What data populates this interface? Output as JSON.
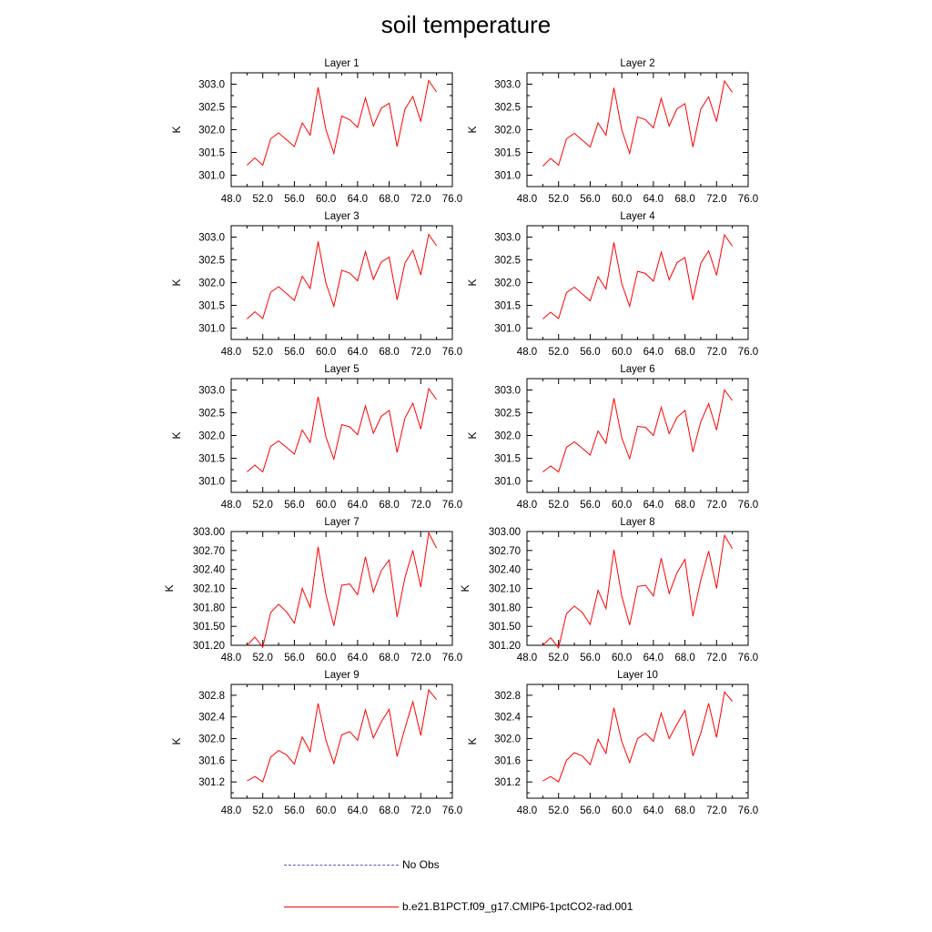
{
  "figure": {
    "title": "soil temperature"
  },
  "legend": {
    "items": [
      {
        "label": "No Obs",
        "style": "dashed",
        "color": "#5a5ab0"
      },
      {
        "label": "b.e21.B1PCT.f09_g17.CMIP6-1pctCO2-rad.001",
        "style": "solid",
        "color": "#ff0000"
      }
    ]
  },
  "chart_data": [
    {
      "type": "line",
      "title": "Layer 1",
      "xlabel": "",
      "ylabel": "K",
      "xlim": [
        48,
        76
      ],
      "xticks": [
        "48.0",
        "52.0",
        "56.0",
        "60.0",
        "64.0",
        "68.0",
        "72.0",
        "76.0"
      ],
      "ylim": [
        300.75,
        303.25
      ],
      "yticks": [
        "301.0",
        "301.5",
        "302.0",
        "302.5",
        "303.0"
      ],
      "x": [
        50,
        51,
        52,
        53,
        54,
        55,
        56,
        57,
        58,
        59,
        60,
        61,
        62,
        63,
        64,
        65,
        66,
        67,
        68,
        69,
        70,
        71,
        72,
        73,
        74
      ],
      "series": [
        {
          "color": "#ff0000",
          "values": [
            301.22,
            301.38,
            301.22,
            301.8,
            301.93,
            301.78,
            301.63,
            302.15,
            301.88,
            302.93,
            302.0,
            301.48,
            302.3,
            302.22,
            302.05,
            302.7,
            302.08,
            302.47,
            302.58,
            301.63,
            302.45,
            302.73,
            302.18,
            303.08,
            302.83
          ]
        }
      ]
    },
    {
      "type": "line",
      "title": "Layer 2",
      "xlabel": "",
      "ylabel": "K",
      "xlim": [
        48,
        76
      ],
      "xticks": [
        "48.0",
        "52.0",
        "56.0",
        "60.0",
        "64.0",
        "68.0",
        "72.0",
        "76.0"
      ],
      "ylim": [
        300.75,
        303.25
      ],
      "yticks": [
        "301.0",
        "301.5",
        "302.0",
        "302.5",
        "303.0"
      ],
      "x": [
        50,
        51,
        52,
        53,
        54,
        55,
        56,
        57,
        58,
        59,
        60,
        61,
        62,
        63,
        64,
        65,
        66,
        67,
        68,
        69,
        70,
        71,
        72,
        73,
        74
      ],
      "series": [
        {
          "color": "#ff0000",
          "values": [
            301.2,
            301.37,
            301.22,
            301.8,
            301.92,
            301.77,
            301.62,
            302.15,
            301.88,
            302.92,
            302.0,
            301.48,
            302.28,
            302.22,
            302.04,
            302.69,
            302.08,
            302.46,
            302.57,
            301.62,
            302.45,
            302.72,
            302.18,
            303.07,
            302.82
          ]
        }
      ]
    },
    {
      "type": "line",
      "title": "Layer 3",
      "xlabel": "",
      "ylabel": "K",
      "xlim": [
        48,
        76
      ],
      "xticks": [
        "48.0",
        "52.0",
        "56.0",
        "60.0",
        "64.0",
        "68.0",
        "72.0",
        "76.0"
      ],
      "ylim": [
        300.75,
        303.25
      ],
      "yticks": [
        "301.0",
        "301.5",
        "302.0",
        "302.5",
        "303.0"
      ],
      "x": [
        50,
        51,
        52,
        53,
        54,
        55,
        56,
        57,
        58,
        59,
        60,
        61,
        62,
        63,
        64,
        65,
        66,
        67,
        68,
        69,
        70,
        71,
        72,
        73,
        74
      ],
      "series": [
        {
          "color": "#ff0000",
          "values": [
            301.2,
            301.36,
            301.21,
            301.79,
            301.91,
            301.76,
            301.61,
            302.14,
            301.87,
            302.9,
            301.99,
            301.48,
            302.27,
            302.21,
            302.04,
            302.68,
            302.07,
            302.45,
            302.56,
            301.62,
            302.43,
            302.71,
            302.17,
            303.06,
            302.81
          ]
        }
      ]
    },
    {
      "type": "line",
      "title": "Layer 4",
      "xlabel": "",
      "ylabel": "K",
      "xlim": [
        48,
        76
      ],
      "xticks": [
        "48.0",
        "52.0",
        "56.0",
        "60.0",
        "64.0",
        "68.0",
        "72.0",
        "76.0"
      ],
      "ylim": [
        300.75,
        303.25
      ],
      "yticks": [
        "301.0",
        "301.5",
        "302.0",
        "302.5",
        "303.0"
      ],
      "x": [
        50,
        51,
        52,
        53,
        54,
        55,
        56,
        57,
        58,
        59,
        60,
        61,
        62,
        63,
        64,
        65,
        66,
        67,
        68,
        69,
        70,
        71,
        72,
        73,
        74
      ],
      "series": [
        {
          "color": "#ff0000",
          "values": [
            301.2,
            301.35,
            301.21,
            301.78,
            301.9,
            301.75,
            301.6,
            302.13,
            301.86,
            302.88,
            301.98,
            301.48,
            302.25,
            302.2,
            302.03,
            302.67,
            302.06,
            302.44,
            302.55,
            301.62,
            302.42,
            302.7,
            302.16,
            303.05,
            302.8
          ]
        }
      ]
    },
    {
      "type": "line",
      "title": "Layer 5",
      "xlabel": "",
      "ylabel": "K",
      "xlim": [
        48,
        76
      ],
      "xticks": [
        "48.0",
        "52.0",
        "56.0",
        "60.0",
        "64.0",
        "68.0",
        "72.0",
        "76.0"
      ],
      "ylim": [
        300.75,
        303.25
      ],
      "yticks": [
        "301.0",
        "301.5",
        "302.0",
        "302.5",
        "303.0"
      ],
      "x": [
        50,
        51,
        52,
        53,
        54,
        55,
        56,
        57,
        58,
        59,
        60,
        61,
        62,
        63,
        64,
        65,
        66,
        67,
        68,
        69,
        70,
        71,
        72,
        73,
        74
      ],
      "series": [
        {
          "color": "#ff0000",
          "values": [
            301.2,
            301.35,
            301.2,
            301.76,
            301.88,
            301.74,
            301.59,
            302.12,
            301.85,
            302.85,
            301.97,
            301.48,
            302.24,
            302.19,
            302.02,
            302.65,
            302.05,
            302.42,
            302.55,
            301.63,
            302.38,
            302.71,
            302.14,
            303.03,
            302.79
          ]
        }
      ]
    },
    {
      "type": "line",
      "title": "Layer 6",
      "xlabel": "",
      "ylabel": "K",
      "xlim": [
        48,
        76
      ],
      "xticks": [
        "48.0",
        "52.0",
        "56.0",
        "60.0",
        "64.0",
        "68.0",
        "72.0",
        "76.0"
      ],
      "ylim": [
        300.75,
        303.25
      ],
      "yticks": [
        "301.0",
        "301.5",
        "302.0",
        "302.5",
        "303.0"
      ],
      "x": [
        50,
        51,
        52,
        53,
        54,
        55,
        56,
        57,
        58,
        59,
        60,
        61,
        62,
        63,
        64,
        65,
        66,
        67,
        68,
        69,
        70,
        71,
        72,
        73,
        74
      ],
      "series": [
        {
          "color": "#ff0000",
          "values": [
            301.2,
            301.33,
            301.2,
            301.74,
            301.86,
            301.72,
            301.57,
            302.1,
            301.83,
            302.82,
            301.95,
            301.49,
            302.2,
            302.18,
            302.0,
            302.62,
            302.04,
            302.4,
            302.55,
            301.64,
            302.3,
            302.7,
            302.12,
            303.0,
            302.77
          ]
        }
      ]
    },
    {
      "type": "line",
      "title": "Layer 7",
      "xlabel": "",
      "ylabel": "K",
      "xlim": [
        48,
        76
      ],
      "xticks": [
        "48.0",
        "52.0",
        "56.0",
        "60.0",
        "64.0",
        "68.0",
        "72.0",
        "76.0"
      ],
      "ylim": [
        301.2,
        303.0
      ],
      "yticks": [
        "301.20",
        "301.50",
        "301.80",
        "302.10",
        "302.40",
        "302.70",
        "303.00"
      ],
      "x": [
        50,
        51,
        52,
        53,
        54,
        55,
        56,
        57,
        58,
        59,
        60,
        61,
        62,
        63,
        64,
        65,
        66,
        67,
        68,
        69,
        70,
        71,
        72,
        73,
        74
      ],
      "series": [
        {
          "color": "#ff0000",
          "values": [
            301.2,
            301.33,
            301.17,
            301.72,
            301.85,
            301.73,
            301.55,
            302.1,
            301.8,
            302.76,
            302.0,
            301.51,
            302.15,
            302.17,
            302.0,
            302.6,
            302.04,
            302.38,
            302.55,
            301.65,
            302.27,
            302.7,
            302.12,
            302.98,
            302.74
          ]
        }
      ]
    },
    {
      "type": "line",
      "title": "Layer 8",
      "xlabel": "",
      "ylabel": "K",
      "xlim": [
        48,
        76
      ],
      "xticks": [
        "48.0",
        "52.0",
        "56.0",
        "60.0",
        "64.0",
        "68.0",
        "72.0",
        "76.0"
      ],
      "ylim": [
        301.2,
        303.0
      ],
      "yticks": [
        "301.20",
        "301.50",
        "301.80",
        "302.10",
        "302.40",
        "302.70",
        "303.00"
      ],
      "x": [
        50,
        51,
        52,
        53,
        54,
        55,
        56,
        57,
        58,
        59,
        60,
        61,
        62,
        63,
        64,
        65,
        66,
        67,
        68,
        69,
        70,
        71,
        72,
        73,
        74
      ],
      "series": [
        {
          "color": "#ff0000",
          "values": [
            301.2,
            301.32,
            301.16,
            301.7,
            301.82,
            301.72,
            301.53,
            302.07,
            301.78,
            302.71,
            301.98,
            301.52,
            302.13,
            302.15,
            301.98,
            302.58,
            302.02,
            302.35,
            302.56,
            301.66,
            302.23,
            302.69,
            302.1,
            302.94,
            302.73
          ]
        }
      ]
    },
    {
      "type": "line",
      "title": "Layer 9",
      "xlabel": "",
      "ylabel": "K",
      "xlim": [
        48,
        76
      ],
      "xticks": [
        "48.0",
        "52.0",
        "56.0",
        "60.0",
        "64.0",
        "68.0",
        "72.0",
        "76.0"
      ],
      "ylim": [
        300.9,
        303.0
      ],
      "yticks": [
        "301.2",
        "301.6",
        "302.0",
        "302.4",
        "302.8"
      ],
      "x": [
        50,
        51,
        52,
        53,
        54,
        55,
        56,
        57,
        58,
        59,
        60,
        61,
        62,
        63,
        64,
        65,
        66,
        67,
        68,
        69,
        70,
        71,
        72,
        73,
        74
      ],
      "series": [
        {
          "color": "#ff0000",
          "values": [
            301.22,
            301.3,
            301.2,
            301.66,
            301.78,
            301.7,
            301.53,
            302.03,
            301.76,
            302.65,
            301.97,
            301.54,
            302.07,
            302.13,
            301.97,
            302.53,
            302.01,
            302.31,
            302.54,
            301.67,
            302.19,
            302.68,
            302.06,
            302.9,
            302.72
          ]
        }
      ]
    },
    {
      "type": "line",
      "title": "Layer 10",
      "xlabel": "",
      "ylabel": "K",
      "xlim": [
        48,
        76
      ],
      "xticks": [
        "48.0",
        "52.0",
        "56.0",
        "60.0",
        "64.0",
        "68.0",
        "72.0",
        "76.0"
      ],
      "ylim": [
        300.9,
        303.0
      ],
      "yticks": [
        "301.2",
        "301.6",
        "302.0",
        "302.4",
        "302.8"
      ],
      "x": [
        50,
        51,
        52,
        53,
        54,
        55,
        56,
        57,
        58,
        59,
        60,
        61,
        62,
        63,
        64,
        65,
        66,
        67,
        68,
        69,
        70,
        71,
        72,
        73,
        74
      ],
      "series": [
        {
          "color": "#ff0000",
          "values": [
            301.22,
            301.3,
            301.2,
            301.6,
            301.74,
            301.68,
            301.52,
            301.99,
            301.73,
            302.57,
            301.95,
            301.56,
            302.0,
            302.1,
            301.95,
            302.47,
            302.0,
            302.27,
            302.52,
            301.68,
            302.1,
            302.65,
            302.02,
            302.86,
            302.69
          ]
        }
      ]
    }
  ]
}
